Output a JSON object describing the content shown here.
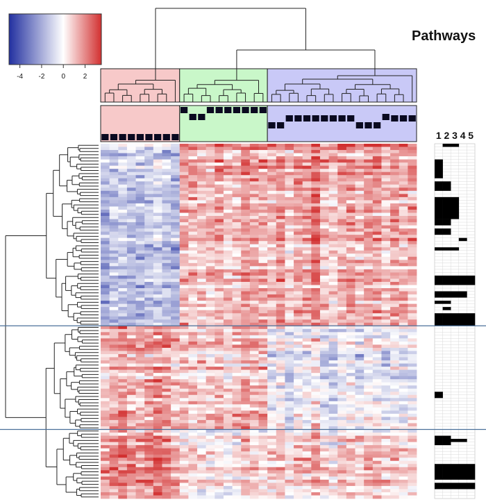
{
  "chart_data": {
    "type": "heatmap",
    "title": "Pathways",
    "color_scale": {
      "min": -5,
      "max": 3.5,
      "low_color": "#2230a0",
      "mid_color": "#ffffff",
      "high_color": "#d23030",
      "ticks": [
        -4,
        -2,
        0,
        2
      ],
      "tick_labels": [
        "-4",
        "-2",
        "0",
        "2"
      ]
    },
    "column_clusters": [
      {
        "name": "",
        "color": "#f7c9c9",
        "columns": 9
      },
      {
        "name": "",
        "color": "#c9f7c9",
        "columns": 10
      },
      {
        "name": "",
        "color": "#c9c9f7",
        "columns": 17
      }
    ],
    "row_groups": [
      {
        "rows": 58,
        "mean": [
          -1.6,
          1.2,
          1.4
        ]
      },
      {
        "rows": 33,
        "mean": [
          1.3,
          1.1,
          -0.3
        ]
      },
      {
        "rows": 22,
        "mean": [
          1.6,
          0.2,
          0.7
        ]
      }
    ],
    "pathway_columns": [
      "1",
      "2",
      "3",
      "4",
      "5"
    ],
    "pathway_rows": 113,
    "pathway_blocks": [
      {
        "start": 0,
        "end": 0,
        "cols": [
          1,
          2
        ]
      },
      {
        "start": 5,
        "end": 10,
        "cols": [
          0
        ]
      },
      {
        "start": 12,
        "end": 14,
        "cols": [
          0,
          1
        ]
      },
      {
        "start": 17,
        "end": 23,
        "cols": [
          0,
          1,
          2
        ]
      },
      {
        "start": 24,
        "end": 25,
        "cols": [
          0,
          1
        ]
      },
      {
        "start": 27,
        "end": 28,
        "cols": [
          0,
          1
        ]
      },
      {
        "start": 30,
        "end": 30,
        "cols": [
          3
        ]
      },
      {
        "start": 33,
        "end": 33,
        "cols": [
          0,
          1,
          2
        ]
      },
      {
        "start": 42,
        "end": 44,
        "cols": [
          0,
          1,
          2,
          3,
          4
        ]
      },
      {
        "start": 47,
        "end": 48,
        "cols": [
          0,
          1,
          2,
          3
        ]
      },
      {
        "start": 50,
        "end": 50,
        "cols": [
          0,
          1
        ]
      },
      {
        "start": 52,
        "end": 52,
        "cols": [
          1
        ]
      },
      {
        "start": 54,
        "end": 57,
        "cols": [
          0,
          1,
          2,
          3,
          4
        ]
      },
      {
        "start": 79,
        "end": 80,
        "cols": [
          0
        ]
      },
      {
        "start": 93,
        "end": 95,
        "cols": [
          0,
          1
        ]
      },
      {
        "start": 94,
        "end": 94,
        "cols": [
          2,
          3
        ]
      },
      {
        "start": 102,
        "end": 106,
        "cols": [
          0,
          1,
          2,
          3,
          4
        ]
      },
      {
        "start": 108,
        "end": 109,
        "cols": [
          0,
          1,
          2,
          3,
          4
        ]
      }
    ]
  }
}
